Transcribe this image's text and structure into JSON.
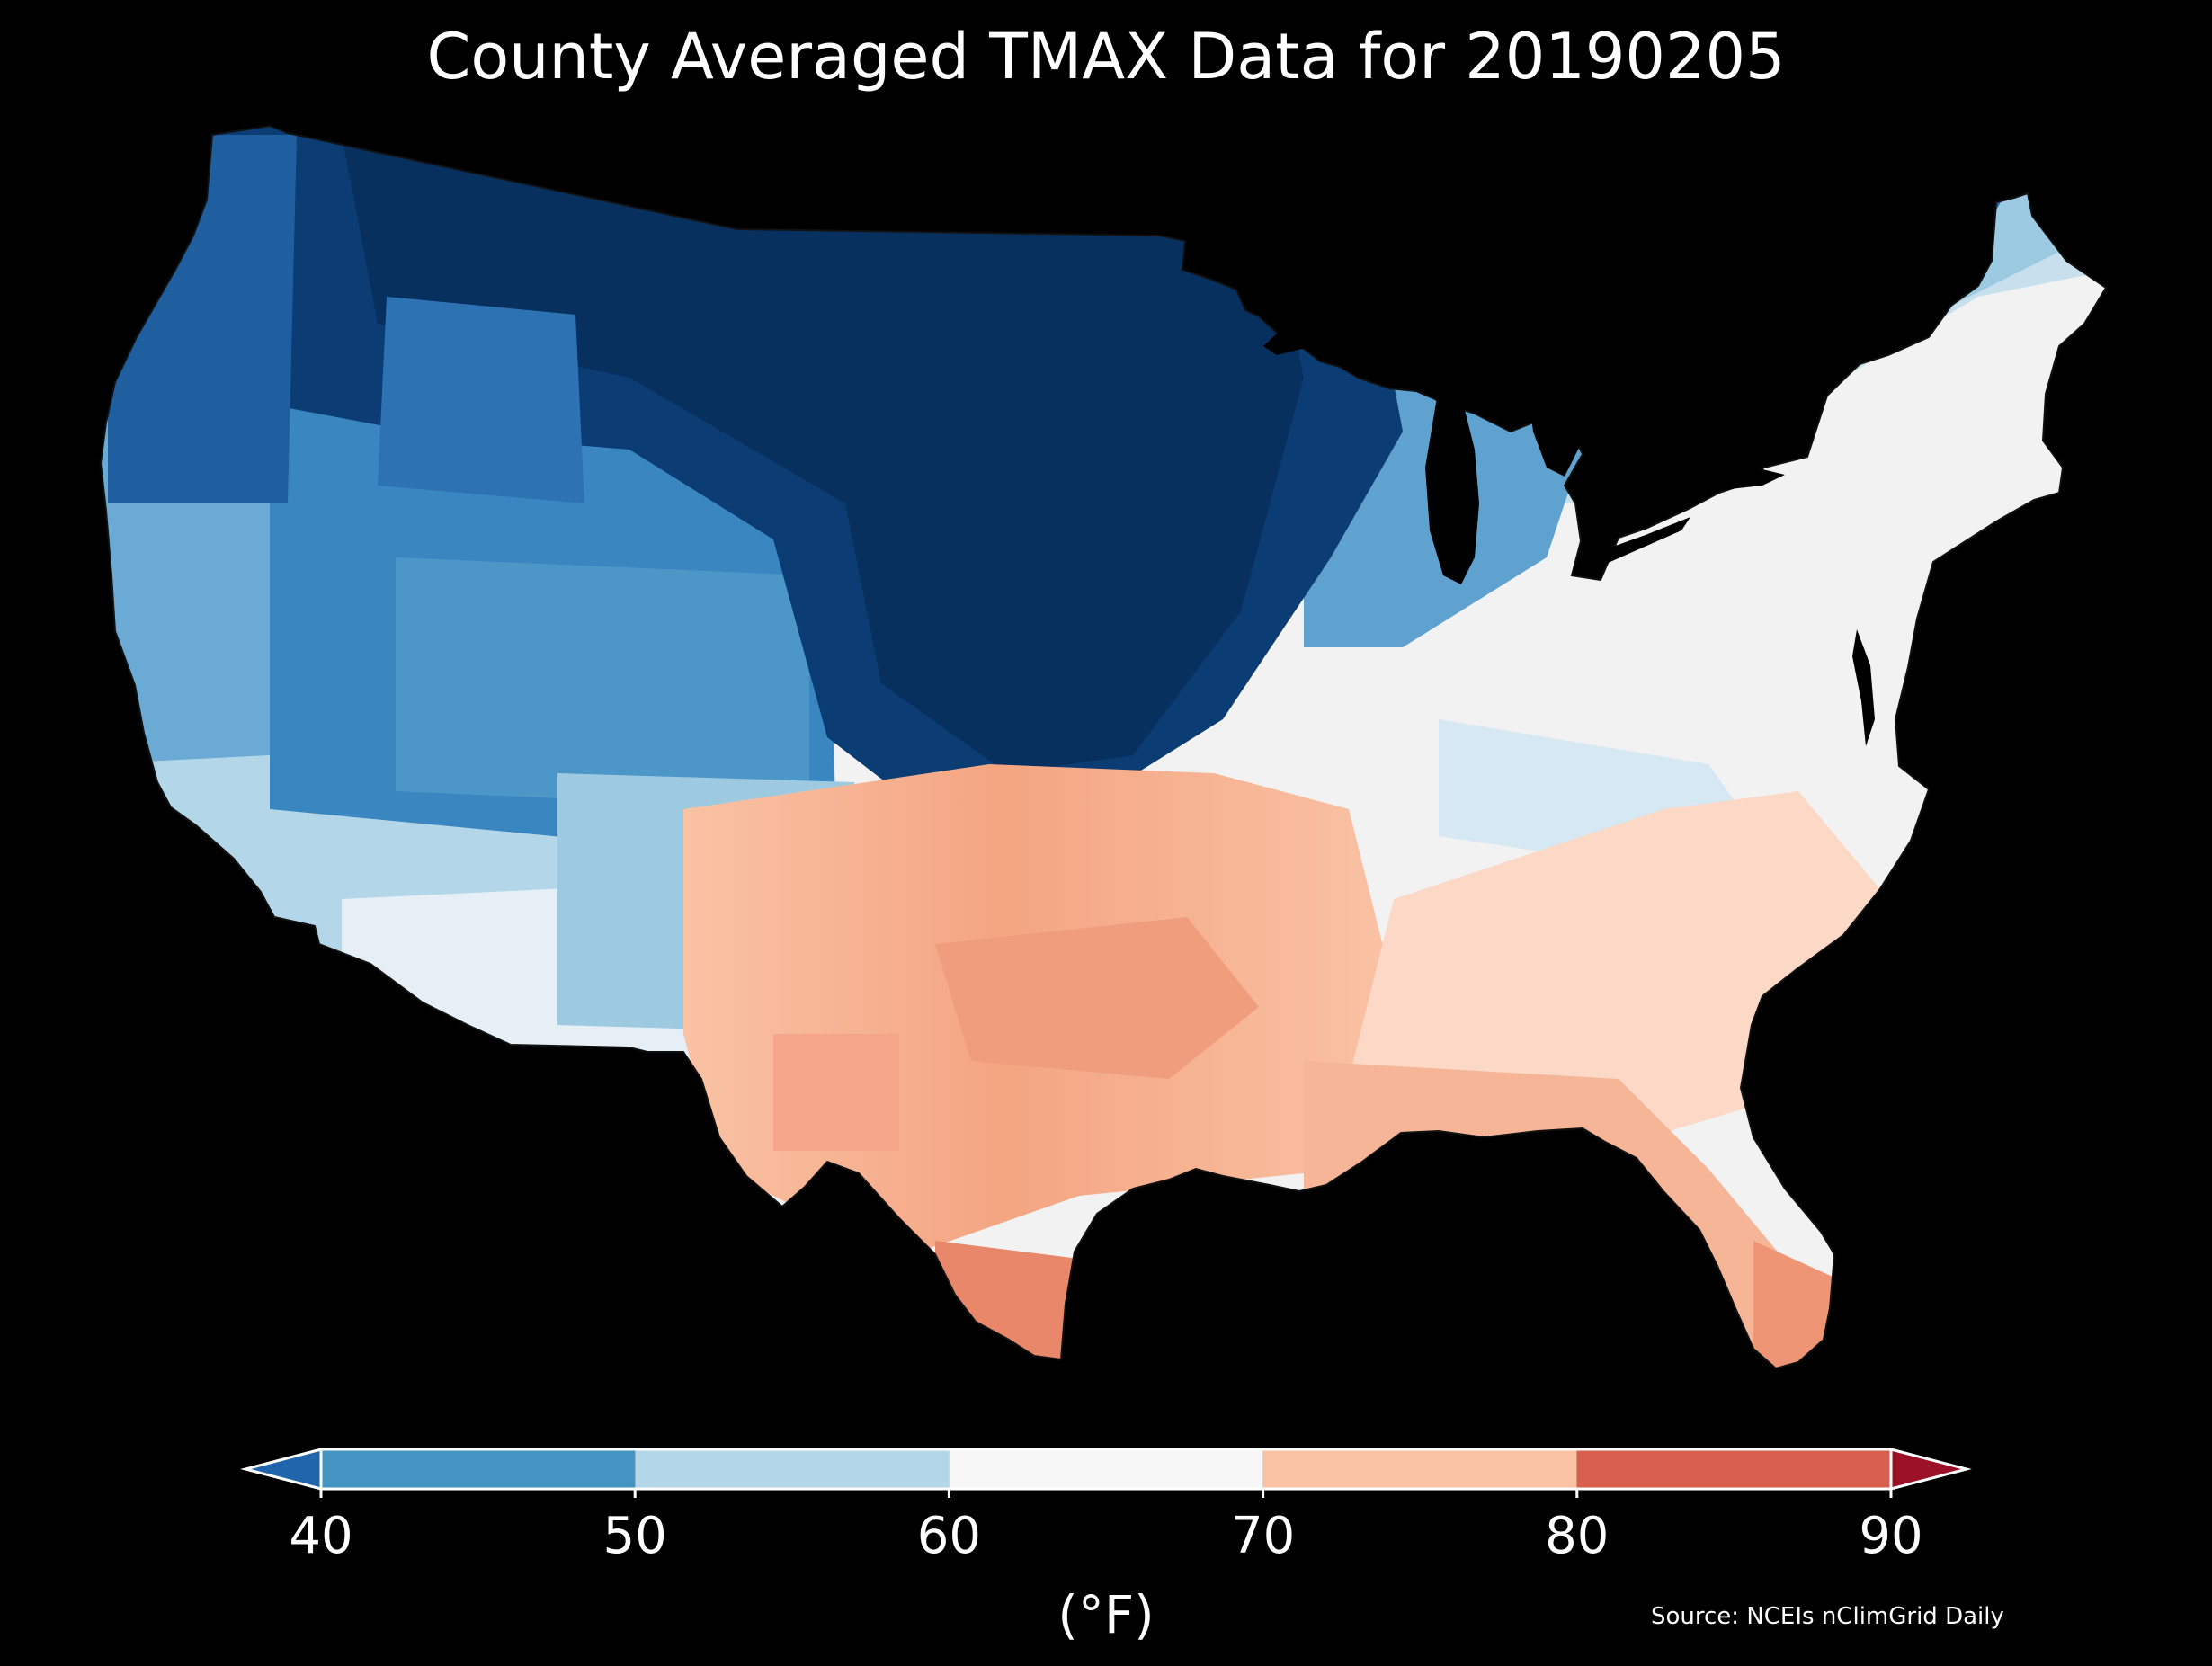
{
  "title": "County Averaged TMAX Data for 20190205",
  "source": "Source: NCEIs nClimGrid Daily",
  "colorbar": {
    "unit": "(°F)",
    "ticks": [
      "40",
      "50",
      "60",
      "70",
      "80",
      "90"
    ],
    "bins": [
      {
        "range": "<40",
        "color": "#2166ac"
      },
      {
        "range": "40-50",
        "color": "#4393c3"
      },
      {
        "range": "50-60",
        "color": "#b4d6e9"
      },
      {
        "range": "60-70",
        "color": "#f7f7f7"
      },
      {
        "range": "70-80",
        "color": "#f9c2a4"
      },
      {
        "range": "80-90",
        "color": "#d6604d"
      },
      {
        "range": ">90",
        "color": "#9c1127"
      }
    ]
  },
  "map": {
    "background_color": "#000000",
    "region": "Contiguous United States",
    "units": "counties",
    "pattern": "coldest (below 40 °F) across the northern Rockies, northern Plains and upper Midwest; 70-80 °F across Texas, Oklahoma, Gulf Coast and Florida; 50-70 °F across the Northeast, Ohio Valley and Southwest"
  }
}
